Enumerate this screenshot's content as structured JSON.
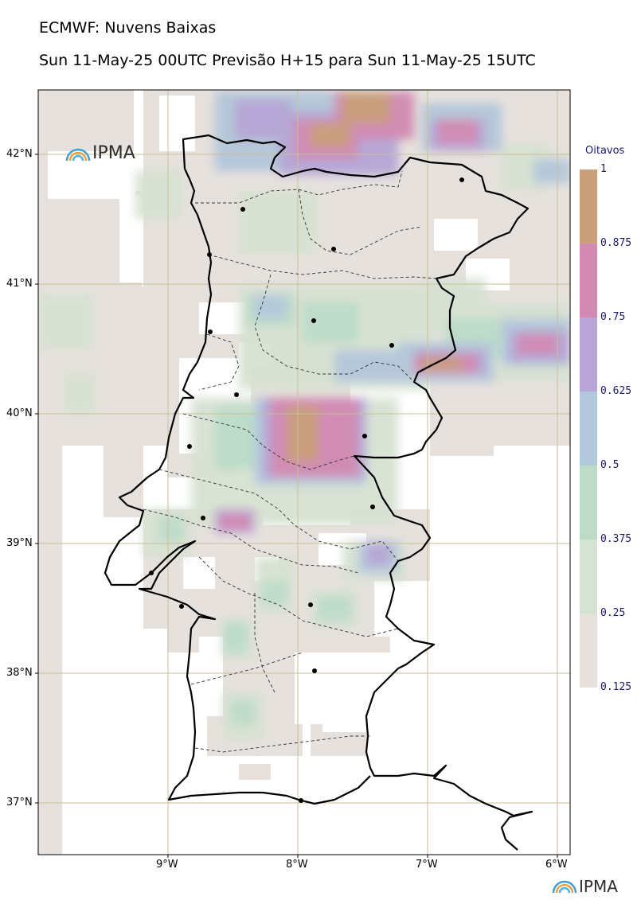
{
  "title": "ECMWF: Nuvens Baixas",
  "subtitle": "Sun 11-May-25 00UTC Previsão H+15 para Sun 11-May-25 15UTC",
  "logo_text": "IPMA",
  "colorbar": {
    "title": "Oitavos",
    "levels": [
      "0.125",
      "0.25",
      "0.375",
      "0.5",
      "0.625",
      "0.75",
      "0.875",
      "1"
    ],
    "colors": [
      "#e6e1dd",
      "#d6e2d2",
      "#bcdcc9",
      "#b3c7da",
      "#b6a5d6",
      "#d28ab2",
      "#c9a07a"
    ]
  },
  "axes": {
    "lat_labels": [
      "42°N",
      "41°N",
      "40°N",
      "39°N",
      "38°N",
      "37°N"
    ],
    "lon_labels": [
      "9°W",
      "8°W",
      "7°W",
      "6°W"
    ]
  },
  "map": {
    "region": "Portugal continental",
    "variable": "low cloud cover (eighths)"
  }
}
